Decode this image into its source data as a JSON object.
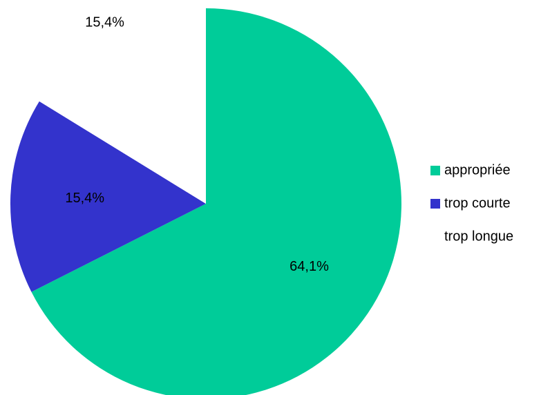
{
  "chart_data": {
    "type": "pie",
    "title": "",
    "slices": [
      {
        "name": "appropriée",
        "value": 64.1,
        "label": "64,1%",
        "color": "#00CC99"
      },
      {
        "name": "trop courte",
        "value": 15.4,
        "label": "15,4%",
        "color": "#3333CC"
      },
      {
        "name": "trop longue",
        "value": 15.4,
        "label": "15,4%",
        "color": "#FFFFFF"
      }
    ],
    "legend": {
      "position": "right",
      "entries": [
        "appropriée",
        "trop courte",
        "trop longue"
      ]
    },
    "start_angle": "12 o'clock",
    "direction": "clockwise"
  }
}
